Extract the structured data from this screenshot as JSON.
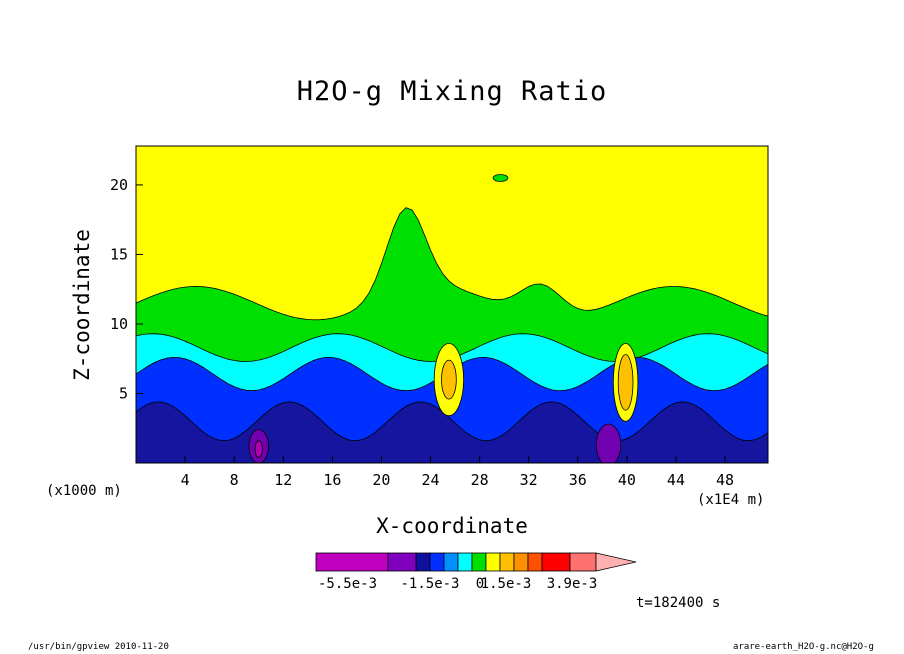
{
  "chart_data": {
    "type": "contour",
    "title": "H2O-g Mixing Ratio",
    "xlabel": "X-coordinate",
    "ylabel": "Z-coordinate",
    "x_unit_note": "(x1000 m)",
    "x_scale_note": "(x1E4 m)",
    "xlim": [
      0,
      51.5
    ],
    "ylim": [
      0,
      22.8
    ],
    "x_ticks": [
      4,
      8,
      12,
      16,
      20,
      24,
      28,
      32,
      36,
      40,
      44,
      48
    ],
    "y_ticks": [
      5,
      10,
      15,
      20
    ],
    "colorbar": {
      "labels": [
        "-5.5e-3",
        "-1.5e-3",
        "0",
        "1.5e-3",
        "3.9e-3"
      ],
      "colors": [
        "#c000c0",
        "#8000c0",
        "#1010a0",
        "#0030ff",
        "#0090ff",
        "#00ffff",
        "#00e000",
        "#ffff00",
        "#ffc000",
        "#ff9000",
        "#ff5000",
        "#ff0000",
        "#ff7070",
        "#ffb0b0"
      ],
      "extend": "max"
    },
    "palette": {
      "dark_blue": "#1515a0",
      "blue": "#0030ff",
      "cyan": "#00ffff",
      "green": "#00e000",
      "yellow": "#ffff00",
      "orange": "#ffc000",
      "purple": "#7000b0",
      "magenta": "#b000b0"
    }
  },
  "time_label": "t=182400 s",
  "footer": {
    "left": "/usr/bin/gpview  2010-11-20",
    "right": "arare-earth_H2O-g.nc@H2O-g"
  }
}
